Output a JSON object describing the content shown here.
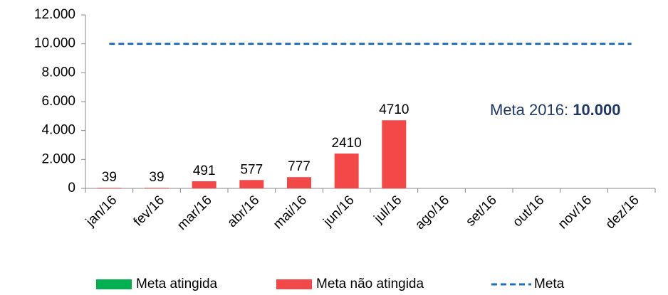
{
  "chart_data": {
    "type": "bar",
    "categories": [
      "jan/16",
      "fev/16",
      "mar/16",
      "abr/16",
      "mai/16",
      "jun/16",
      "jul/16",
      "ago/16",
      "set/16",
      "out/16",
      "nov/16",
      "dez/16"
    ],
    "series": [
      {
        "name": "Meta atingida",
        "color": "#00b050",
        "values": [
          null,
          null,
          null,
          null,
          null,
          null,
          null,
          null,
          null,
          null,
          null,
          null
        ]
      },
      {
        "name": "Meta não atingida",
        "color": "#f24848",
        "values": [
          39,
          39,
          491,
          577,
          777,
          2410,
          4710,
          null,
          null,
          null,
          null,
          null
        ]
      },
      {
        "name": "Meta",
        "type": "line",
        "color": "#1f6fc0",
        "dashed": true,
        "values": [
          10000,
          10000,
          10000,
          10000,
          10000,
          10000,
          10000,
          10000,
          10000,
          10000,
          10000,
          10000
        ]
      }
    ],
    "ylim": [
      0,
      12000
    ],
    "yticks": [
      0,
      {
        "value": 2000,
        "label": "2.000"
      },
      {
        "value": 4000,
        "label": "4.000"
      },
      {
        "value": 6000,
        "label": "6.000"
      },
      {
        "value": 8000,
        "label": "8.000"
      },
      {
        "value": 10000,
        "label": "10.000"
      },
      {
        "value": 12000,
        "label": "12.000"
      }
    ],
    "annotation": {
      "text": "Meta 2016:",
      "bold": "10.000"
    },
    "legend": "bottom"
  }
}
